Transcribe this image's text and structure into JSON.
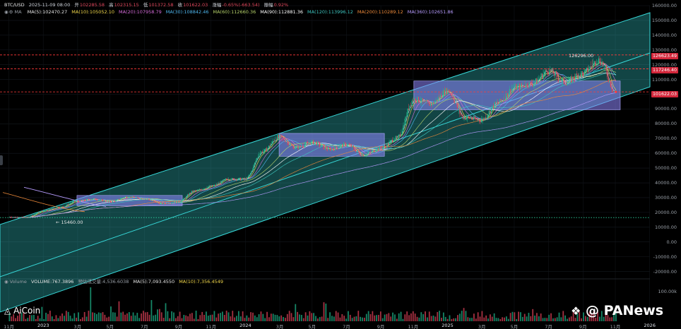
{
  "header": {
    "symbol": "BTC/USD",
    "datetime": "2025-11-09 08:00",
    "open_label": "开",
    "open": "102285.58",
    "high_label": "高",
    "high": "102315.15",
    "low_label": "低",
    "low": "101372.58",
    "close_label": "收",
    "close": "101622.03",
    "change_label": "涨幅",
    "change": "-0.65%(-663.54)",
    "amp_label": "振幅",
    "amp": "0.92%"
  },
  "ma_header": {
    "title": "MA",
    "items": [
      {
        "text": "MA(5):102470.27",
        "color": "#e8e8e8"
      },
      {
        "text": "MA(10):105052.10",
        "color": "#f2d84b"
      },
      {
        "text": "MA(20):107958.79",
        "color": "#d46bd8"
      },
      {
        "text": "MA(30):108842.46",
        "color": "#4fb7ee"
      },
      {
        "text": "MA(60):112660.36",
        "color": "#b7d36b"
      },
      {
        "text": "MA(90):112881.36",
        "color": "#ffffff"
      },
      {
        "text": "MA(120):113996.12",
        "color": "#3ec6c0"
      },
      {
        "text": "MA(200):110289.12",
        "color": "#ee8a3a"
      },
      {
        "text": "MA(360):102651.86",
        "color": "#b79cff"
      }
    ]
  },
  "volume_header": {
    "title": "Volume",
    "volume": "VOLUME:767.3896",
    "estimate": "预估成交量:4,536.6038",
    "ma5": "MA(5):7,093.4550",
    "ma10": "MA(10):7,356.4549"
  },
  "price_labels": {
    "high_line": "126623.49",
    "mid_line": "117246.40",
    "current": "101622.03",
    "peak_note": "126296.00",
    "low_note": "15460.00"
  },
  "volume_axis": {
    "tick": "100.00k"
  },
  "branding": {
    "aicoin": "AiCoin",
    "panews": "@ PANews"
  },
  "colors": {
    "channel": "#37d7d7",
    "box": "#8f86ff",
    "red_line": "#ff3b3b",
    "up": "#1fbf8f",
    "down": "#e0465a"
  },
  "chart_data": {
    "type": "candlestick",
    "title": "BTC/USD",
    "y_ticks": [
      160000,
      150000,
      140000,
      130000,
      120000,
      110000,
      100000,
      90000,
      80000,
      70000,
      60000,
      50000,
      40000,
      30000,
      20000,
      10000,
      0,
      -10000,
      -20000
    ],
    "y_tick_labels": [
      "160000.00",
      "150000.00",
      "140000.00",
      "130000.00",
      "120000.00",
      "110000.00",
      "100000.00",
      "90000.00",
      "80000.00",
      "70000.00",
      "60000.00",
      "50000.00",
      "40000.00",
      "30000.00",
      "20000.00",
      "10000.00",
      "0.00",
      "-10000.00",
      "-20000.00"
    ],
    "x_ticks": [
      "11月",
      "2023",
      "3月",
      "5月",
      "7月",
      "9月",
      "11月",
      "2024",
      "3月",
      "5月",
      "7月",
      "9月",
      "11月",
      "2025",
      "3月",
      "5月",
      "7月",
      "9月",
      "11月",
      "2026"
    ],
    "horizontal_lines": [
      {
        "value": 126623.49,
        "style": "dashed",
        "color": "#ff3b3b"
      },
      {
        "value": 117246.4,
        "style": "dashed",
        "color": "#ff3b3b"
      },
      {
        "value": 101622.03,
        "style": "dashed",
        "color": "#ff3b3b"
      },
      {
        "value": 16500,
        "style": "dotted",
        "color": "#2fd3a0"
      }
    ],
    "price_path": [
      [
        "2022-11",
        16800
      ],
      [
        "2022-12",
        16600
      ],
      [
        "2023-01",
        21000
      ],
      [
        "2023-02",
        23500
      ],
      [
        "2023-03",
        27500
      ],
      [
        "2023-04",
        29000
      ],
      [
        "2023-05",
        27200
      ],
      [
        "2023-06",
        30500
      ],
      [
        "2023-07",
        29300
      ],
      [
        "2023-08",
        26000
      ],
      [
        "2023-09",
        27000
      ],
      [
        "2023-10",
        34500
      ],
      [
        "2023-11",
        37700
      ],
      [
        "2023-12",
        42500
      ],
      [
        "2024-01",
        42500
      ],
      [
        "2024-02",
        61000
      ],
      [
        "2024-03",
        71000
      ],
      [
        "2024-04",
        64000
      ],
      [
        "2024-05",
        67500
      ],
      [
        "2024-06",
        62700
      ],
      [
        "2024-07",
        66000
      ],
      [
        "2024-08",
        59000
      ],
      [
        "2024-09",
        63300
      ],
      [
        "2024-10",
        70200
      ],
      [
        "2024-11",
        96400
      ],
      [
        "2024-12",
        93400
      ],
      [
        "2025-01",
        102400
      ],
      [
        "2025-02",
        84300
      ],
      [
        "2025-03",
        82500
      ],
      [
        "2025-04",
        94200
      ],
      [
        "2025-05",
        104600
      ],
      [
        "2025-06",
        107100
      ],
      [
        "2025-07",
        115700
      ],
      [
        "2025-08",
        108200
      ],
      [
        "2025-09",
        114000
      ],
      [
        "2025-10",
        123000
      ],
      [
        "2025-11",
        101622
      ]
    ],
    "consolidation_boxes": [
      {
        "from": "2023-03",
        "to": "2023-09",
        "low": 24500,
        "high": 31500
      },
      {
        "from": "2024-03",
        "to": "2024-09",
        "low": 58000,
        "high": 73500
      },
      {
        "from": "2024-11",
        "to": "2025-11",
        "low": 89500,
        "high": 109000
      }
    ],
    "grid": true
  }
}
